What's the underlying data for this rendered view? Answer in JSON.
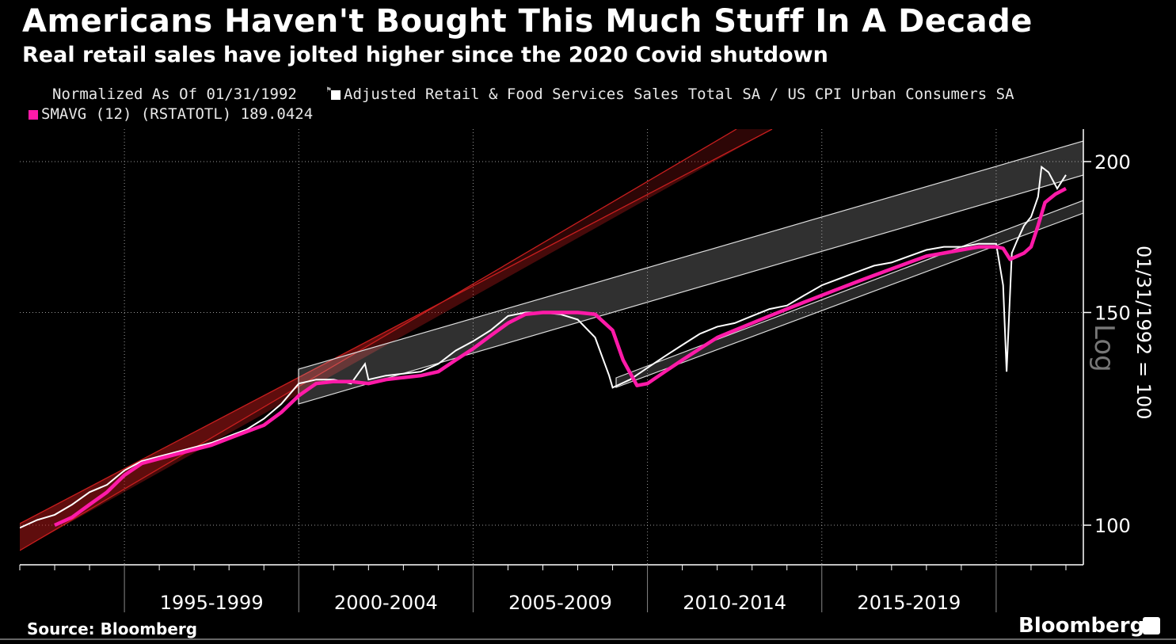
{
  "title": "Americans Haven't Bought This Much Stuff In A Decade",
  "subtitle": "Real retail sales have jolted higher since the 2020 Covid shutdown",
  "legend": {
    "normalized": "Normalized As Of 01/31/1992",
    "series1": "Adjusted Retail & Food Services Sales Total SA / US CPI Urban Consumers SA",
    "series2": "SMAVG (12) (RSTATOTL) 189.0424"
  },
  "source": "Source: Bloomberg",
  "brand": "Bloomberg",
  "colors": {
    "series1": "#ffffff",
    "series2": "#ff1aa8",
    "channel_red": "#c81e1e",
    "channel_gray": "#d9d9d9"
  },
  "chart_data": {
    "type": "line",
    "yscale": "log",
    "ylim": [
      90,
      210
    ],
    "yticks": [
      "100",
      "150",
      "200"
    ],
    "ylabel": "01/31/1992 = 100",
    "ylabel_scale": "Log",
    "x_range": [
      1992.0,
      2022.5
    ],
    "x_period_labels": [
      "1995-1999",
      "2000-2004",
      "2005-2009",
      "2010-2014",
      "2015-2019"
    ],
    "grid": true,
    "series": [
      {
        "name": "Adjusted Retail & Food Services Sales Total SA / US CPI Urban Consumers SA",
        "x": [
          1992.0,
          1992.5,
          1993.0,
          1993.5,
          1994.0,
          1994.5,
          1995.0,
          1995.5,
          1996.0,
          1996.5,
          1997.0,
          1997.5,
          1998.0,
          1998.5,
          1999.0,
          1999.5,
          2000.0,
          2000.5,
          2001.0,
          2001.5,
          2001.9,
          2002.0,
          2002.5,
          2003.0,
          2003.5,
          2004.0,
          2004.5,
          2005.0,
          2005.5,
          2006.0,
          2006.5,
          2007.0,
          2007.5,
          2008.0,
          2008.5,
          2008.9,
          2009.0,
          2009.5,
          2010.0,
          2010.5,
          2011.0,
          2011.5,
          2012.0,
          2012.5,
          2013.0,
          2013.5,
          2014.0,
          2014.5,
          2015.0,
          2015.5,
          2016.0,
          2016.5,
          2017.0,
          2017.5,
          2018.0,
          2018.5,
          2019.0,
          2019.5,
          2020.0,
          2020.2,
          2020.3,
          2020.45,
          2020.6,
          2020.8,
          2021.0,
          2021.2,
          2021.3,
          2021.5,
          2021.75,
          2022.0
        ],
        "values": [
          99.5,
          101,
          102,
          104,
          106.5,
          108,
          111,
          113,
          114,
          115,
          116,
          117,
          118.5,
          120,
          122.5,
          126,
          131,
          132,
          132,
          131,
          136,
          132,
          133,
          133.5,
          134,
          136,
          139.5,
          142,
          145,
          149,
          150,
          150,
          149.5,
          148,
          143,
          133,
          130,
          132,
          135,
          138,
          141,
          144,
          146,
          147,
          149,
          151,
          152,
          155,
          158,
          160,
          162,
          164,
          165,
          167,
          169,
          170,
          170,
          171,
          171,
          158,
          134,
          168,
          172,
          177,
          180,
          187,
          198,
          196,
          190,
          195
        ]
      },
      {
        "name": "SMAVG (12) (RSTATOTL)",
        "x": [
          1993.0,
          1993.5,
          1994.0,
          1994.5,
          1995.0,
          1995.5,
          1996.0,
          1996.5,
          1997.0,
          1997.5,
          1998.0,
          1998.5,
          1999.0,
          1999.5,
          2000.0,
          2000.5,
          2001.0,
          2001.5,
          2002.0,
          2002.5,
          2003.0,
          2003.5,
          2004.0,
          2004.5,
          2005.0,
          2005.5,
          2006.0,
          2006.5,
          2007.0,
          2007.5,
          2008.0,
          2008.5,
          2009.0,
          2009.3,
          2009.7,
          2010.0,
          2010.5,
          2011.0,
          2011.5,
          2012.0,
          2012.5,
          2013.0,
          2013.5,
          2014.0,
          2014.5,
          2015.0,
          2015.5,
          2016.0,
          2016.5,
          2017.0,
          2017.5,
          2018.0,
          2018.5,
          2019.0,
          2019.5,
          2020.0,
          2020.2,
          2020.4,
          2020.6,
          2020.8,
          2021.0,
          2021.2,
          2021.4,
          2021.7,
          2022.0
        ],
        "values": [
          100,
          101.5,
          104,
          106.5,
          110,
          112.5,
          113.5,
          114.5,
          115.5,
          116.5,
          118,
          119.5,
          121,
          124,
          128,
          131,
          131.5,
          131.5,
          131,
          132,
          132.5,
          133,
          134,
          137,
          140,
          143.5,
          147,
          149.5,
          150,
          150,
          150,
          149.5,
          145,
          137,
          130.5,
          131,
          134,
          137,
          140,
          143,
          145,
          147,
          149,
          151,
          153,
          155,
          157,
          159,
          161,
          163,
          165,
          167,
          168,
          169,
          170,
          170,
          169.5,
          166,
          167,
          168,
          170,
          177,
          185,
          188,
          190
        ]
      }
    ]
  }
}
